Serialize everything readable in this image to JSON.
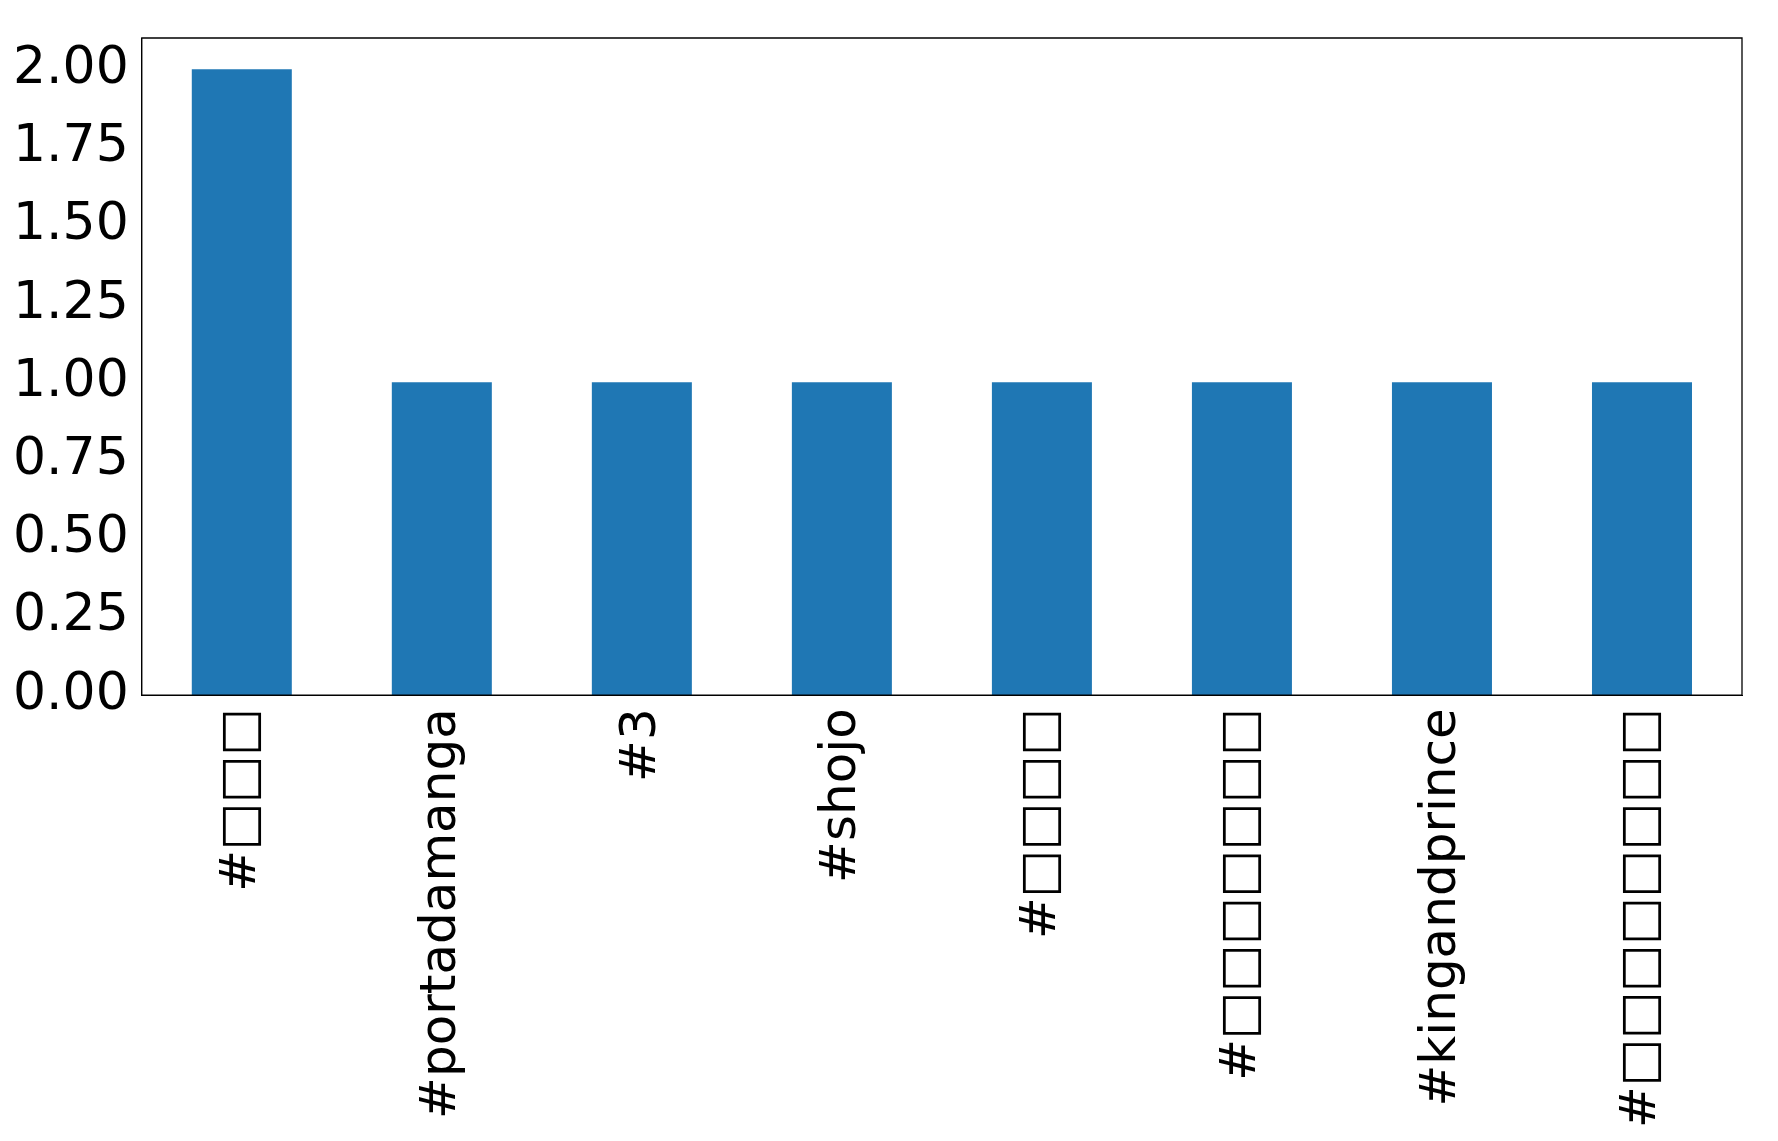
{
  "chart_data": {
    "type": "bar",
    "categories": [
      "#□□□",
      "#portadamanga",
      "#3",
      "#shojo",
      "#□□□□",
      "#□□□□□□□",
      "#kingandprince",
      "#□□□□□□□□"
    ],
    "values": [
      2,
      1,
      1,
      1,
      1,
      1,
      1,
      1
    ],
    "color": "#1f77b4",
    "ylim": [
      0,
      2.1
    ],
    "yticks": [
      {
        "value": 0,
        "label": "0.00"
      },
      {
        "value": 0.25,
        "label": "0.25"
      },
      {
        "value": 0.5,
        "label": "0.50"
      },
      {
        "value": 0.75,
        "label": "0.75"
      },
      {
        "value": 1,
        "label": "1.00"
      },
      {
        "value": 1.25,
        "label": "1.25"
      },
      {
        "value": 1.5,
        "label": "1.50"
      },
      {
        "value": 1.75,
        "label": "1.75"
      },
      {
        "value": 2,
        "label": "2.00"
      }
    ],
    "grid": false,
    "legend": false
  }
}
